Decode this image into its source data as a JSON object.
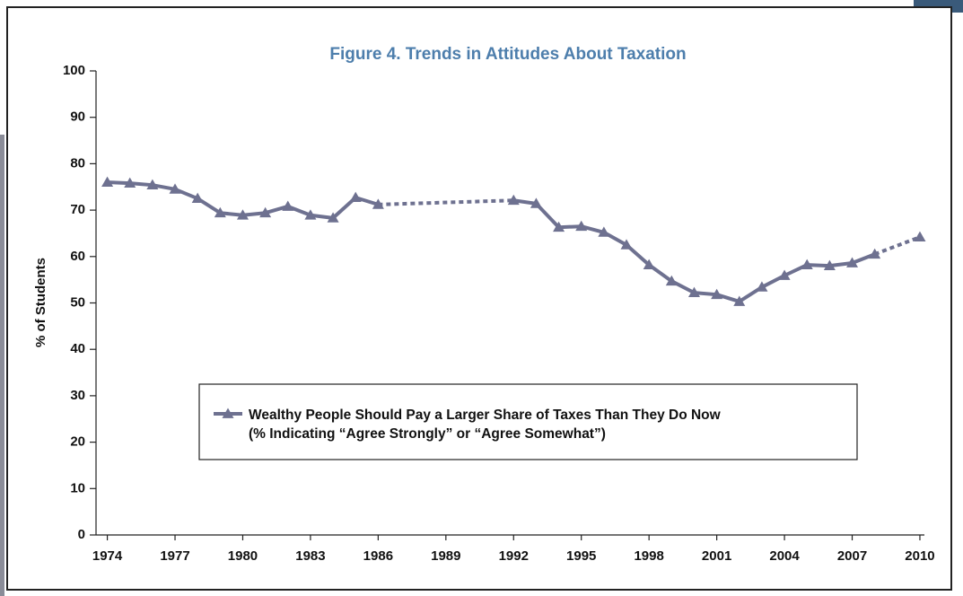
{
  "chart_data": {
    "type": "line",
    "title": "Figure 4. Trends in Attitudes About Taxation",
    "y_label": "% of Students",
    "x": [
      1974,
      1975,
      1976,
      1977,
      1978,
      1979,
      1980,
      1981,
      1982,
      1983,
      1984,
      1985,
      1986,
      1992,
      1993,
      1994,
      1995,
      1996,
      1997,
      1998,
      1999,
      2000,
      2001,
      2002,
      2003,
      2004,
      2005,
      2006,
      2007,
      2008,
      2010
    ],
    "series": [
      {
        "name": "Wealthy People Should Pay a Larger Share of Taxes Than They Do Now",
        "color": "#6e7190",
        "values": [
          76.0,
          75.8,
          75.4,
          74.5,
          72.5,
          69.4,
          68.9,
          69.4,
          70.8,
          68.9,
          68.3,
          72.7,
          71.2,
          72.1,
          71.4,
          66.3,
          66.5,
          65.2,
          62.5,
          58.2,
          54.7,
          52.2,
          51.8,
          50.3,
          53.4,
          55.9,
          58.2,
          58.0,
          58.6,
          60.5,
          64.2
        ]
      }
    ],
    "legend_note": "(% Indicating “Agree Strongly” or “Agree Somewhat”)",
    "xlim": [
      1973.5,
      2010.2
    ],
    "xticks": [
      1974,
      1977,
      1980,
      1983,
      1986,
      1989,
      1992,
      1995,
      1998,
      2001,
      2004,
      2007,
      2010
    ],
    "ylim": [
      0,
      100
    ],
    "yticks": [
      0,
      10,
      20,
      30,
      40,
      50,
      60,
      70,
      80,
      90,
      100
    ],
    "grid": false
  }
}
